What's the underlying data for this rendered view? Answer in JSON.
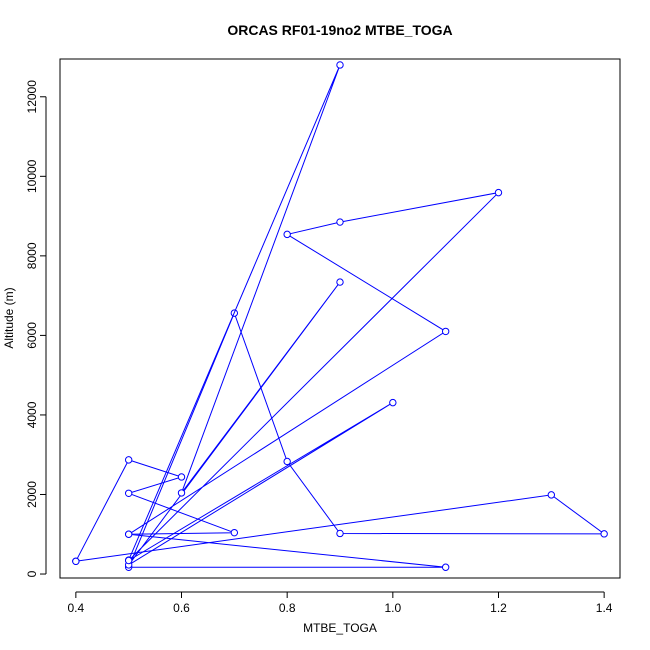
{
  "chart_data": {
    "type": "line",
    "title": "ORCAS RF01-19no2 MTBE_TOGA",
    "xlabel": "MTBE_TOGA",
    "ylabel": "Altitude (m)",
    "xlim": [
      0.37,
      1.43
    ],
    "ylim": [
      -100,
      12950
    ],
    "xticks": [
      0.4,
      0.6,
      0.8,
      1.0,
      1.2,
      1.4
    ],
    "xtick_labels": [
      "0.4",
      "0.6",
      "0.8",
      "1.0",
      "1.2",
      "1.4"
    ],
    "yticks": [
      0,
      2000,
      4000,
      6000,
      8000,
      10000,
      12000
    ],
    "ytick_labels": [
      "0",
      "2000",
      "4000",
      "6000",
      "8000",
      "10000",
      "12000"
    ],
    "grid": false,
    "series": [
      {
        "color": "#0000ff",
        "marker": "open-circle",
        "points": [
          {
            "x": 0.4,
            "y": 320
          },
          {
            "x": 0.5,
            "y": 2870
          },
          {
            "x": 0.6,
            "y": 2440
          },
          {
            "x": 0.5,
            "y": 2030
          },
          {
            "x": 0.7,
            "y": 1040
          },
          {
            "x": 0.5,
            "y": 1000
          },
          {
            "x": 1.1,
            "y": 170
          },
          {
            "x": 0.5,
            "y": 170
          },
          {
            "x": 0.7,
            "y": 6560
          },
          {
            "x": 0.8,
            "y": 2830
          },
          {
            "x": 0.9,
            "y": 1020
          },
          {
            "x": 1.4,
            "y": 1010
          },
          {
            "x": 1.3,
            "y": 1990
          },
          {
            "x": 0.4,
            "y": 320
          }
        ]
      },
      {
        "color": "#0000ff",
        "marker": "open-circle",
        "points": [
          {
            "x": 0.5,
            "y": 350
          },
          {
            "x": 0.9,
            "y": 12800
          },
          {
            "x": 0.6,
            "y": 2040
          },
          {
            "x": 0.9,
            "y": 7340
          },
          {
            "x": 0.5,
            "y": 230
          },
          {
            "x": 1.0,
            "y": 4310
          },
          {
            "x": 0.5,
            "y": 340
          },
          {
            "x": 1.2,
            "y": 9590
          },
          {
            "x": 0.9,
            "y": 8850
          },
          {
            "x": 0.8,
            "y": 8540
          },
          {
            "x": 1.1,
            "y": 6100
          },
          {
            "x": 0.5,
            "y": 1000
          }
        ]
      }
    ]
  }
}
